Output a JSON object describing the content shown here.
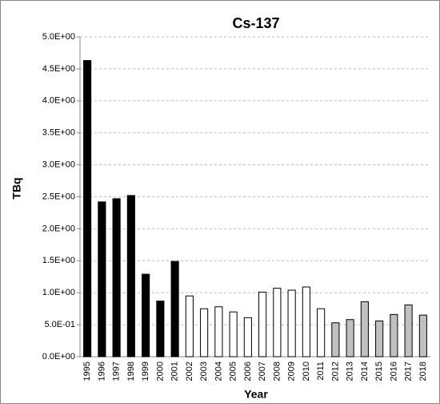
{
  "chart_data": {
    "type": "bar",
    "title": "Cs-137",
    "x_label": "Year",
    "y_label": "TBq",
    "categories": [
      "1995",
      "1996",
      "1997",
      "1998",
      "1999",
      "2000",
      "2001",
      "2002",
      "2003",
      "2004",
      "2005",
      "2006",
      "2007",
      "2008",
      "2009",
      "2010",
      "2011",
      "2012",
      "2013",
      "2014",
      "2015",
      "2016",
      "2017",
      "2018"
    ],
    "values": [
      4.63,
      2.42,
      2.47,
      2.52,
      1.29,
      0.87,
      1.49,
      0.95,
      0.75,
      0.78,
      0.7,
      0.61,
      1.01,
      1.07,
      1.04,
      1.09,
      0.75,
      0.53,
      0.58,
      0.86,
      0.56,
      0.66,
      0.81,
      0.65
    ],
    "colors": [
      "#000000",
      "#000000",
      "#000000",
      "#000000",
      "#000000",
      "#000000",
      "#000000",
      "#ffffff",
      "#ffffff",
      "#ffffff",
      "#ffffff",
      "#ffffff",
      "#ffffff",
      "#ffffff",
      "#ffffff",
      "#ffffff",
      "#ffffff",
      "#c0c0c0",
      "#c0c0c0",
      "#c0c0c0",
      "#c0c0c0",
      "#c0c0c0",
      "#c0c0c0",
      "#c0c0c0"
    ],
    "ylim": [
      0,
      5
    ],
    "yticks": [
      {
        "value": 0,
        "label": "0.0E+00"
      },
      {
        "value": 0.5,
        "label": "5.0E-01"
      },
      {
        "value": 1,
        "label": "1.0E+00"
      },
      {
        "value": 1.5,
        "label": "1.5E+00"
      },
      {
        "value": 2,
        "label": "2.0E+00"
      },
      {
        "value": 2.5,
        "label": "2.5E+00"
      },
      {
        "value": 3,
        "label": "3.0E+00"
      },
      {
        "value": 3.5,
        "label": "3.5E+00"
      },
      {
        "value": 4,
        "label": "4.0E+00"
      },
      {
        "value": 4.5,
        "label": "4.5E+00"
      },
      {
        "value": 5,
        "label": "5.0E+00"
      }
    ],
    "grid": true
  }
}
